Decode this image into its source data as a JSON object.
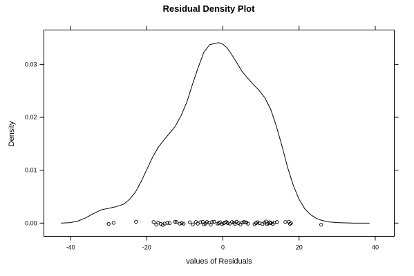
{
  "chart_data": {
    "type": "line",
    "title": "Residual Density Plot",
    "xlabel": "values of Residuals",
    "ylabel": "Density",
    "xlim": [
      -47,
      45
    ],
    "ylim": [
      -0.0025,
      0.0365
    ],
    "xticks": [
      -40,
      -20,
      0,
      20,
      40
    ],
    "xtick_labels": [
      "-40",
      "-20",
      "0",
      "20",
      "40"
    ],
    "yticks": [
      0.0,
      0.01,
      0.02,
      0.03
    ],
    "ytick_labels": [
      "0.00",
      "0.01",
      "0.02",
      "0.03"
    ],
    "grid": false,
    "series": [
      {
        "x": [
          -42.5,
          -40,
          -38,
          -36,
          -34,
          -32,
          -30,
          -28,
          -26,
          -24.5,
          -23,
          -21.5,
          -20,
          -18.5,
          -17,
          -15.5,
          -14,
          -12.5,
          -11,
          -9.5,
          -8,
          -6.5,
          -5,
          -3.5,
          -2,
          -1,
          0,
          1,
          2,
          3.5,
          5,
          6.5,
          8,
          9.5,
          11,
          12.5,
          14,
          15.5,
          17,
          18.5,
          20,
          21.5,
          23,
          24.5,
          26,
          28,
          30,
          32,
          34,
          36,
          38.5
        ],
        "y": [
          0.0,
          0.0001,
          0.0004,
          0.001,
          0.0018,
          0.0025,
          0.0028,
          0.0031,
          0.0036,
          0.0045,
          0.0058,
          0.0078,
          0.0101,
          0.0124,
          0.0143,
          0.0157,
          0.017,
          0.0183,
          0.0203,
          0.0228,
          0.0262,
          0.0294,
          0.0323,
          0.0337,
          0.034,
          0.0341,
          0.0338,
          0.0332,
          0.0322,
          0.0305,
          0.0287,
          0.0274,
          0.0262,
          0.0251,
          0.0237,
          0.0216,
          0.0184,
          0.0146,
          0.0105,
          0.0071,
          0.0045,
          0.0027,
          0.0016,
          0.0009,
          0.0005,
          0.0002,
          0.0001,
          5e-05,
          0.0,
          0.0,
          0.0
        ]
      }
    ],
    "rug": {
      "x": [
        -30,
        -28.7,
        -22.8,
        -18.2,
        -17.5,
        -17,
        -16.3,
        -15.8,
        -15.3,
        -14.6,
        -14,
        -12.6,
        -12.2,
        -11.3,
        -10.8,
        -10.3,
        -8.7,
        -7.9,
        -7.1,
        -6.6,
        -5.9,
        -5.3,
        -5,
        -4.6,
        -4.2,
        -3.6,
        -3.2,
        -2.8,
        -2.3,
        -1.4,
        -1.1,
        -0.7,
        -0.2,
        0.2,
        0.5,
        0.9,
        1.3,
        1.8,
        2.4,
        2.9,
        3.2,
        3.6,
        4.1,
        4.6,
        5.1,
        5.5,
        5.9,
        6.2,
        6.6,
        8.3,
        8.7,
        9.1,
        9.6,
        10.4,
        10.9,
        11.3,
        11.6,
        11.9,
        12.3,
        12.6,
        13.1,
        13.5,
        14.2,
        16.4,
        17.3,
        17.6,
        17.9,
        25.8
      ],
      "y": [
        -0.00015,
        5e-05,
        0.00025,
        0.0002,
        -0.0003,
        0.0001,
        -0.00015,
        -0.00035,
        -0.0001,
        5e-05,
        0.0,
        0.00025,
        0.0002,
        -0.0001,
        0.0,
        -0.0001,
        0.00015,
        -0.00025,
        0.0002,
        -0.0001,
        0.00015,
        0.00025,
        -0.00025,
        -0.0001,
        0.0002,
        0.0001,
        -0.0003,
        0.0002,
        0.00025,
        -0.0001,
        0.0,
        0.00015,
        -0.0002,
        -5e-05,
        0.0001,
        0.0002,
        0.0,
        -0.0001,
        0.0002,
        0.0001,
        -0.00015,
        0.00025,
        0.0,
        -0.00025,
        0.0001,
        0.0002,
        0.00015,
        0.0001,
        -0.0001,
        -0.0002,
        0.0,
        0.00015,
        0.0,
        -0.00015,
        0.0001,
        0.0003,
        -0.0002,
        -5e-05,
        0.00015,
        0.0,
        -0.00015,
        0.0001,
        0.0002,
        0.0002,
        0.00025,
        -0.00015,
        0.0,
        -0.0003
      ]
    }
  }
}
